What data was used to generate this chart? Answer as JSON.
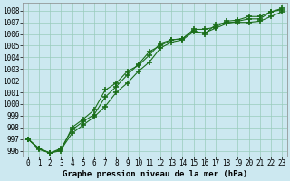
{
  "x": [
    0,
    1,
    2,
    3,
    4,
    5,
    6,
    7,
    8,
    9,
    10,
    11,
    12,
    13,
    14,
    15,
    16,
    17,
    18,
    19,
    20,
    21,
    22,
    23
  ],
  "line1": [
    997.0,
    996.2,
    995.8,
    996.1,
    997.5,
    998.2,
    998.9,
    999.8,
    1001.0,
    1001.8,
    1002.8,
    1003.6,
    1004.8,
    1005.3,
    1005.5,
    1006.2,
    1006.1,
    1006.5,
    1006.9,
    1007.1,
    1007.3,
    1007.3,
    1007.9,
    1008.1
  ],
  "line2": [
    997.0,
    996.1,
    995.8,
    996.0,
    998.0,
    998.7,
    999.5,
    1001.2,
    1001.8,
    1002.8,
    1003.3,
    1004.2,
    1005.2,
    1005.5,
    1005.6,
    1006.3,
    1006.0,
    1006.8,
    1007.0,
    1007.0,
    1007.0,
    1007.1,
    1007.5,
    1007.9
  ],
  "line3": [
    997.0,
    996.2,
    995.8,
    996.2,
    997.8,
    998.5,
    999.1,
    1000.6,
    1001.5,
    1002.5,
    1003.4,
    1004.5,
    1005.0,
    1005.5,
    1005.6,
    1006.4,
    1006.4,
    1006.6,
    1007.1,
    1007.2,
    1007.5,
    1007.5,
    1007.9,
    1008.2
  ],
  "ylim_min": 995.5,
  "ylim_max": 1008.7,
  "ytick_min": 996,
  "ytick_max": 1008,
  "xlim_min": -0.5,
  "xlim_max": 23.5,
  "xticks": [
    0,
    1,
    2,
    3,
    4,
    5,
    6,
    7,
    8,
    9,
    10,
    11,
    12,
    13,
    14,
    15,
    16,
    17,
    18,
    19,
    20,
    21,
    22,
    23
  ],
  "line_color": "#1a6e1a",
  "bg_color": "#cce8f0",
  "grid_color": "#99ccbb",
  "xlabel": "Graphe pression niveau de la mer (hPa)",
  "marker": "+",
  "markersize": 4,
  "linewidth": 0.8,
  "tick_fontsize": 5.5,
  "xlabel_fontsize": 6.5
}
